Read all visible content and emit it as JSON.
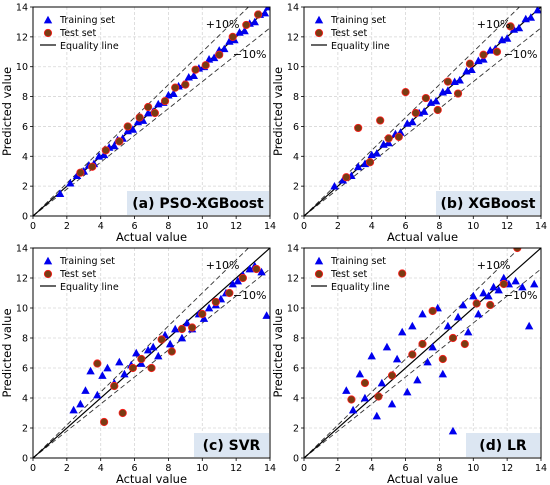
{
  "figure": {
    "legend": {
      "training": "Training set",
      "test": "Test set",
      "equality": "Equality line"
    },
    "ann_plus": "+10%",
    "ann_minus": "−10%"
  },
  "colors": {
    "training": "#0000ee",
    "test": "#7a3b12",
    "test_edge": "#ff2020",
    "guide": "#333333",
    "label_box": "#dce6f2"
  },
  "chart_data": [
    {
      "type": "scatter",
      "title": "(a) PSO-XGBoost",
      "xlabel": "Actual value",
      "ylabel": "Predicted value",
      "xlim": [
        0,
        14
      ],
      "ylim": [
        0,
        14
      ],
      "xticks": [
        0,
        2,
        4,
        6,
        8,
        10,
        12,
        14
      ],
      "yticks": [
        0,
        2,
        4,
        6,
        8,
        10,
        12,
        14
      ],
      "grid": true,
      "legend_position": "top-left",
      "reference_lines": [
        "equality line y = x",
        "+10% (y = 1.1x)",
        "−10% (y = 0.9x)"
      ],
      "series": [
        {
          "name": "Training set",
          "marker": "triangle",
          "x": [
            1.6,
            2.2,
            2.6,
            3.0,
            3.3,
            3.6,
            3.9,
            4.2,
            4.5,
            4.8,
            5.0,
            5.3,
            5.6,
            5.9,
            6.2,
            6.5,
            6.8,
            7.1,
            7.4,
            7.7,
            8.0,
            8.3,
            8.6,
            8.9,
            9.2,
            9.5,
            9.8,
            10.1,
            10.4,
            10.7,
            11.0,
            11.3,
            11.6,
            11.9,
            12.2,
            12.5,
            12.8,
            13.1,
            13.4,
            13.7,
            13.9
          ],
          "y": [
            1.5,
            2.2,
            2.7,
            3.0,
            3.4,
            3.5,
            4.0,
            4.1,
            4.6,
            4.7,
            5.1,
            5.2,
            5.7,
            5.8,
            6.3,
            6.4,
            6.9,
            7.0,
            7.5,
            7.6,
            8.1,
            8.2,
            8.7,
            8.8,
            9.3,
            9.4,
            9.9,
            10.0,
            10.5,
            10.6,
            11.1,
            11.2,
            11.7,
            11.8,
            12.3,
            12.4,
            12.9,
            13.0,
            13.5,
            13.6,
            14.0
          ]
        },
        {
          "name": "Test set",
          "marker": "circle",
          "x": [
            2.8,
            3.5,
            4.3,
            5.1,
            5.6,
            6.3,
            6.8,
            7.2,
            7.8,
            8.4,
            9.0,
            9.6,
            10.2,
            11.0,
            11.8,
            12.6,
            13.3
          ],
          "y": [
            2.9,
            3.3,
            4.4,
            5.0,
            6.0,
            6.6,
            7.3,
            6.9,
            7.7,
            8.6,
            8.8,
            9.8,
            10.1,
            10.8,
            12.0,
            12.8,
            13.5
          ]
        }
      ]
    },
    {
      "type": "scatter",
      "title": "(b) XGBoost",
      "xlabel": "Actual value",
      "ylabel": "Predicted value",
      "xlim": [
        0,
        14
      ],
      "ylim": [
        0,
        14
      ],
      "xticks": [
        0,
        2,
        4,
        6,
        8,
        10,
        12,
        14
      ],
      "yticks": [
        0,
        2,
        4,
        6,
        8,
        10,
        12,
        14
      ],
      "grid": true,
      "legend_position": "top-left",
      "reference_lines": [
        "equality line y = x",
        "+10% (y = 1.1x)",
        "−10% (y = 0.9x)"
      ],
      "series": [
        {
          "name": "Training set",
          "marker": "triangle",
          "x": [
            1.8,
            2.3,
            2.8,
            3.2,
            3.6,
            4.0,
            4.3,
            4.7,
            5.0,
            5.4,
            5.7,
            6.1,
            6.4,
            6.8,
            7.1,
            7.5,
            7.8,
            8.2,
            8.5,
            8.9,
            9.2,
            9.6,
            9.9,
            10.3,
            10.6,
            11.0,
            11.3,
            11.7,
            12.0,
            12.4,
            12.7,
            13.1,
            13.4,
            13.8
          ],
          "y": [
            2.0,
            2.4,
            2.7,
            3.3,
            3.5,
            4.1,
            4.2,
            4.8,
            4.9,
            5.5,
            5.6,
            6.2,
            6.3,
            6.9,
            7.0,
            7.6,
            7.7,
            8.3,
            8.4,
            9.0,
            9.1,
            9.7,
            9.8,
            10.4,
            10.5,
            11.1,
            11.2,
            11.8,
            11.9,
            12.5,
            12.6,
            13.2,
            13.3,
            13.8
          ]
        },
        {
          "name": "Test set",
          "marker": "circle",
          "x": [
            2.5,
            3.2,
            3.9,
            4.5,
            5.0,
            5.6,
            6.0,
            6.6,
            7.2,
            7.9,
            8.5,
            9.1,
            9.8,
            10.6,
            11.4,
            12.2
          ],
          "y": [
            2.6,
            5.9,
            3.6,
            6.4,
            5.2,
            5.3,
            8.3,
            6.9,
            7.9,
            7.1,
            9.0,
            8.2,
            10.2,
            10.8,
            11.0,
            12.7
          ]
        }
      ]
    },
    {
      "type": "scatter",
      "title": "(c) SVR",
      "xlabel": "Actual value",
      "ylabel": "Predicted value",
      "xlim": [
        0,
        14
      ],
      "ylim": [
        0,
        14
      ],
      "xticks": [
        0,
        2,
        4,
        6,
        8,
        10,
        12,
        14
      ],
      "yticks": [
        0,
        2,
        4,
        6,
        8,
        10,
        12,
        14
      ],
      "grid": true,
      "legend_position": "top-left",
      "reference_lines": [
        "equality line y = x",
        "+10% (y = 1.1x)",
        "−10% (y = 0.9x)"
      ],
      "series": [
        {
          "name": "Training set",
          "marker": "triangle",
          "x": [
            2.4,
            2.8,
            3.1,
            3.4,
            3.8,
            4.1,
            4.4,
            4.8,
            5.1,
            5.4,
            5.8,
            6.1,
            6.4,
            6.8,
            7.1,
            7.4,
            7.8,
            8.1,
            8.4,
            8.8,
            9.1,
            9.4,
            9.8,
            10.1,
            10.4,
            10.8,
            11.1,
            11.4,
            11.8,
            12.1,
            12.4,
            12.8,
            13.1,
            13.5,
            13.8
          ],
          "y": [
            3.2,
            3.6,
            4.5,
            5.8,
            4.2,
            5.5,
            6.0,
            5.0,
            6.4,
            5.6,
            6.2,
            7.0,
            6.3,
            7.2,
            7.4,
            6.8,
            8.2,
            7.6,
            8.6,
            8.0,
            9.0,
            8.6,
            9.6,
            9.3,
            10.0,
            10.2,
            10.6,
            11.0,
            11.6,
            11.8,
            12.2,
            12.6,
            12.8,
            12.4,
            9.5
          ]
        },
        {
          "name": "Test set",
          "marker": "circle",
          "x": [
            3.8,
            4.2,
            4.8,
            5.3,
            5.9,
            6.4,
            7.0,
            7.6,
            8.2,
            8.8,
            9.4,
            10.0,
            10.8,
            11.6,
            12.4,
            13.2
          ],
          "y": [
            6.3,
            2.4,
            4.8,
            3.0,
            6.0,
            6.6,
            6.0,
            7.9,
            7.1,
            8.6,
            8.7,
            9.6,
            10.4,
            11.0,
            12.0,
            12.6
          ]
        }
      ]
    },
    {
      "type": "scatter",
      "title": "(d) LR",
      "xlabel": "Actual value",
      "ylabel": "Predicted value",
      "xlim": [
        0,
        14
      ],
      "ylim": [
        0,
        14
      ],
      "xticks": [
        0,
        2,
        4,
        6,
        8,
        10,
        12,
        14
      ],
      "yticks": [
        0,
        2,
        4,
        6,
        8,
        10,
        12,
        14
      ],
      "grid": true,
      "legend_position": "top-left",
      "reference_lines": [
        "equality line y = x",
        "+10% (y = 1.1x)",
        "−10% (y = 0.9x)"
      ],
      "series": [
        {
          "name": "Training set",
          "marker": "triangle",
          "x": [
            2.5,
            2.9,
            3.3,
            3.6,
            4.0,
            4.3,
            4.6,
            4.9,
            5.2,
            5.5,
            5.8,
            6.1,
            6.4,
            6.7,
            7.0,
            7.3,
            7.6,
            7.9,
            8.2,
            8.5,
            8.8,
            9.1,
            9.4,
            9.7,
            10.0,
            10.3,
            10.6,
            10.9,
            11.2,
            11.5,
            11.8,
            12.1,
            12.5,
            12.9,
            13.3,
            13.6
          ],
          "y": [
            4.5,
            3.2,
            5.6,
            4.0,
            6.8,
            2.8,
            5.0,
            7.4,
            3.6,
            6.6,
            8.4,
            4.4,
            8.8,
            5.2,
            9.6,
            6.4,
            7.4,
            10.0,
            5.6,
            8.8,
            1.8,
            9.4,
            10.2,
            8.4,
            10.8,
            9.6,
            11.0,
            10.8,
            11.4,
            11.2,
            12.0,
            11.6,
            11.8,
            11.4,
            8.8,
            11.6
          ]
        },
        {
          "name": "Test set",
          "marker": "circle",
          "x": [
            2.8,
            3.6,
            4.4,
            5.2,
            5.8,
            6.4,
            7.0,
            7.6,
            8.2,
            8.8,
            9.5,
            10.2,
            11.0,
            11.8,
            12.6
          ],
          "y": [
            3.9,
            5.0,
            4.1,
            5.5,
            12.3,
            6.9,
            7.6,
            9.8,
            6.6,
            8.0,
            7.6,
            10.3,
            10.2,
            11.6,
            14.0
          ]
        }
      ]
    }
  ]
}
